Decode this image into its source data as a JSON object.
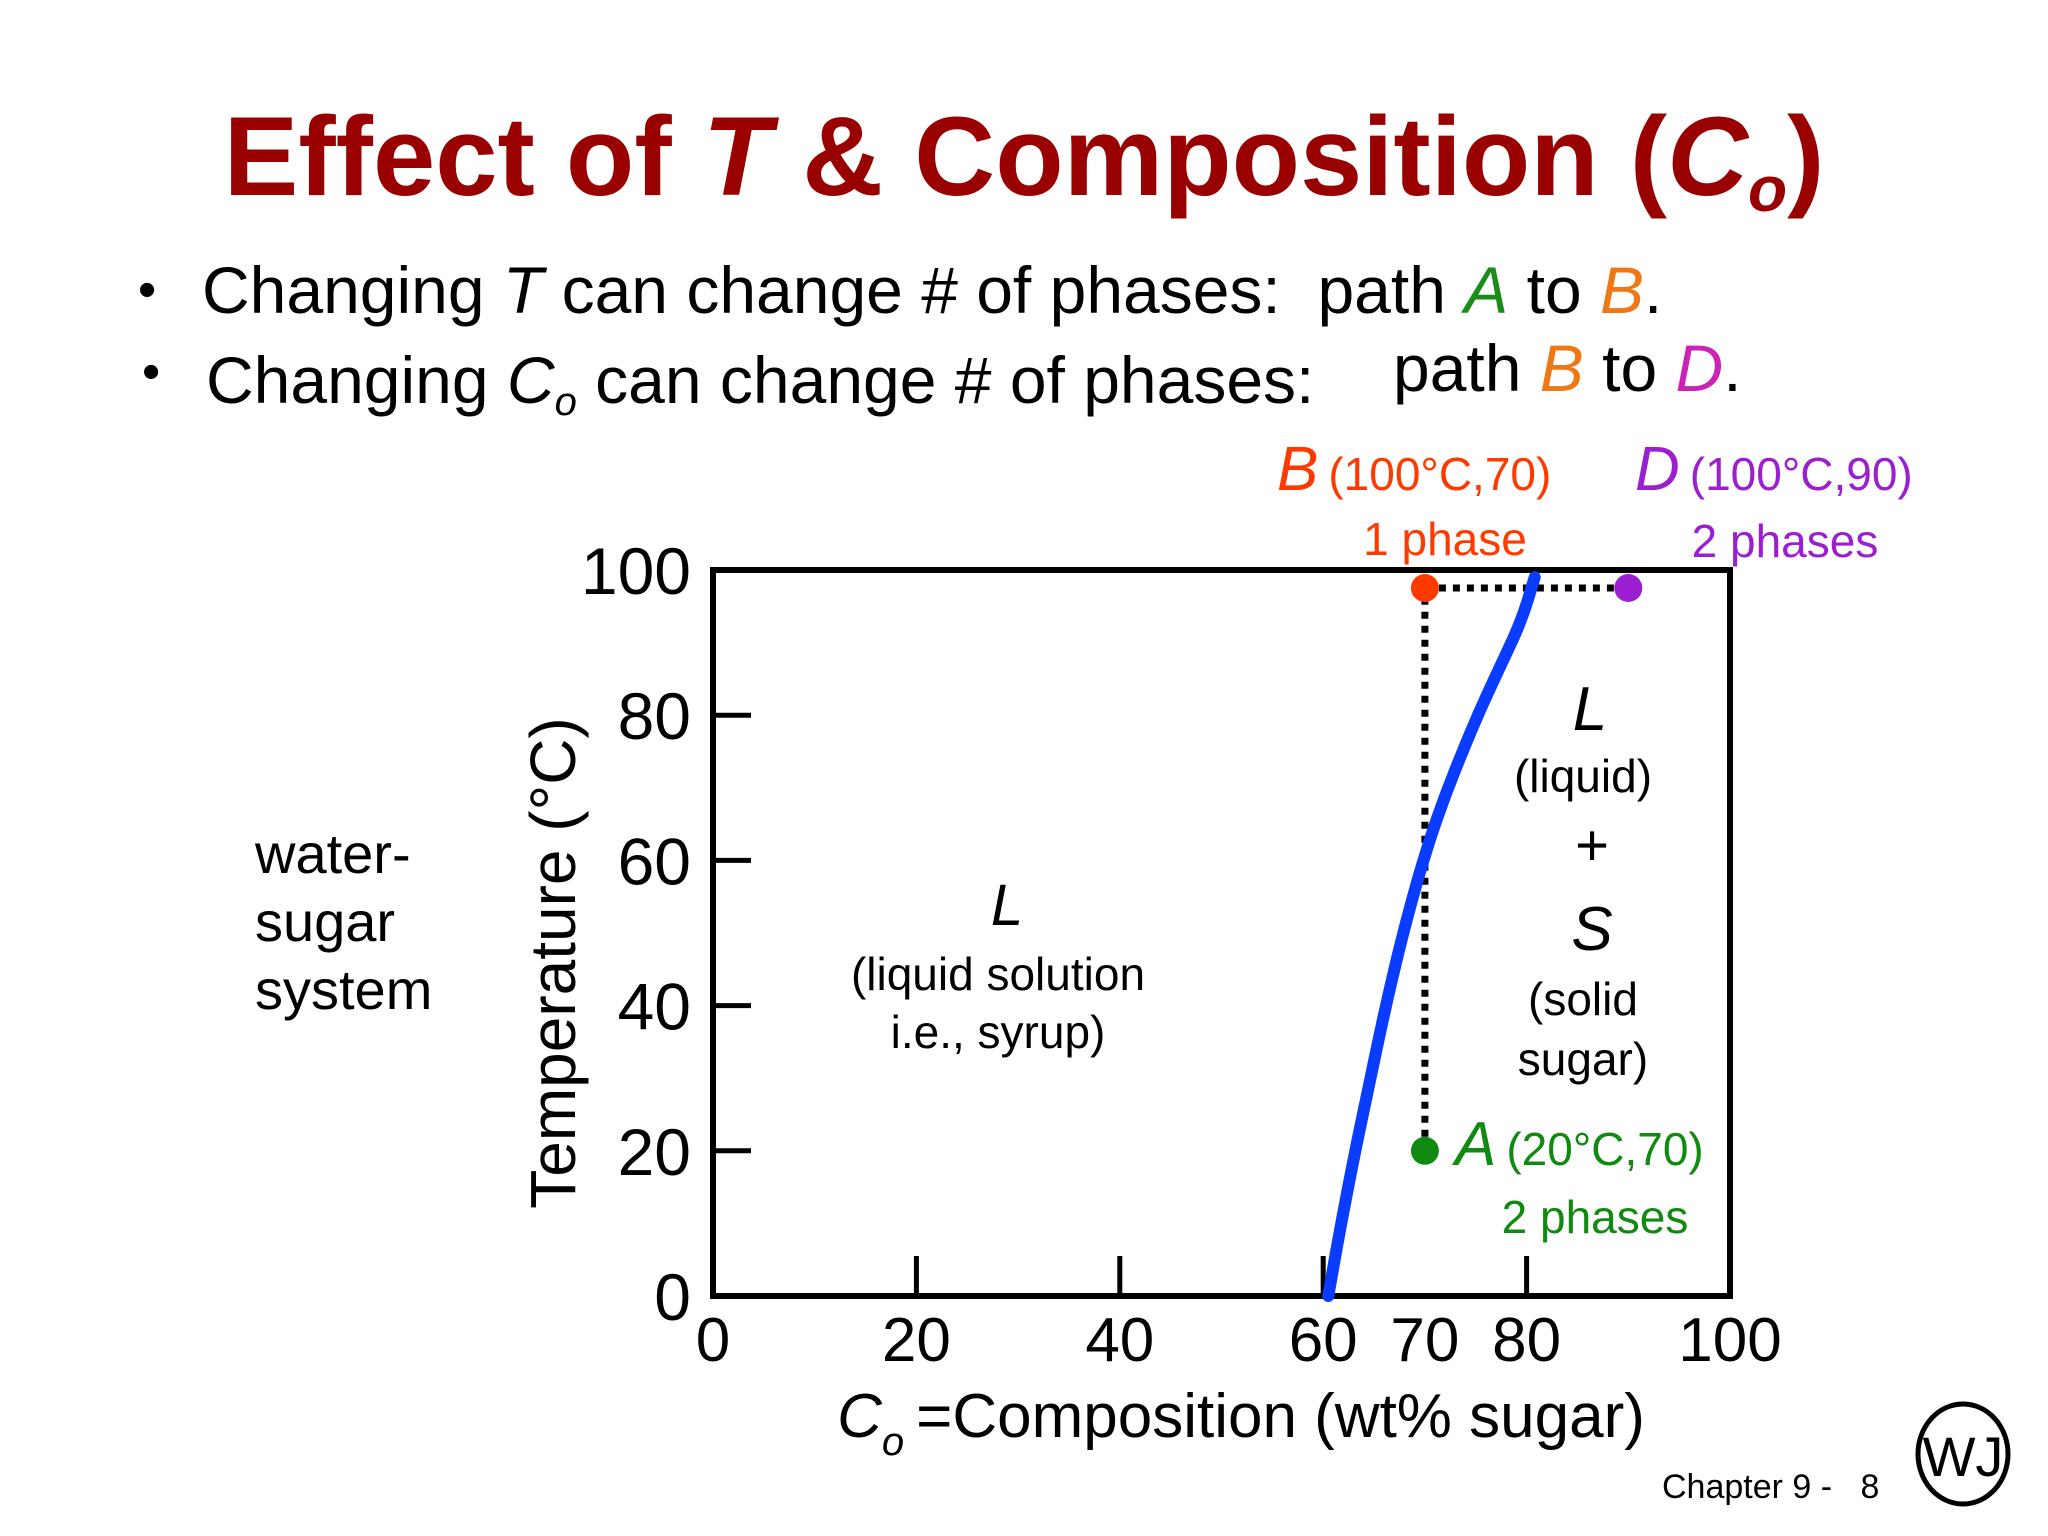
{
  "slide": {
    "title": {
      "prefix": "Effect of ",
      "t": "T",
      "mid": " & Composition (",
      "c": "C",
      "c_sub": "o",
      "suffix": ")"
    },
    "bullets": [
      {
        "before": "Changing ",
        "var": "T",
        "var_sub": "",
        "after": " can change # of phases:",
        "path_word": "path ",
        "from": "A",
        "to_word": " to ",
        "to": "B",
        "end": "."
      },
      {
        "before": "Changing ",
        "var": "C",
        "var_sub": "o",
        "after": " can change # of phases:",
        "path_word": "path ",
        "from": "B",
        "to_word": " to ",
        "to": "D",
        "end": "."
      }
    ],
    "system_label": [
      "water-",
      "sugar",
      "system"
    ],
    "footer": {
      "chapter": "Chapter 9 -",
      "page": "8",
      "logo_text": "WJ"
    }
  },
  "colors": {
    "title": "#990000",
    "path_a": "#1a8c1a",
    "path_b": "#f07814",
    "path_d": "#cc22b5",
    "point_b": "#ff3a00",
    "point_d": "#9b1fd0",
    "point_a": "#108a10",
    "solubility_curve": "#0a3cff"
  },
  "chart_data": {
    "type": "line",
    "xlabel": "=Composition (wt% sugar)",
    "xlabel_var": "C",
    "xlabel_sub": "o",
    "ylabel": "Temperature (°C)",
    "xlim": [
      0,
      100
    ],
    "ylim": [
      0,
      100
    ],
    "x_ticks": [
      0,
      20,
      40,
      60,
      70,
      80,
      100
    ],
    "y_ticks": [
      0,
      20,
      40,
      60,
      80,
      100
    ],
    "solubility_curve": {
      "x": [
        60.5,
        61.5,
        63,
        64.5,
        66,
        67.5,
        69,
        70.5,
        72,
        73.7,
        75.5,
        77.5,
        79.5,
        80.8
      ],
      "y": [
        0,
        8,
        19,
        29,
        39,
        48,
        56,
        63,
        69,
        75,
        81,
        87,
        93,
        99
      ]
    },
    "points": [
      {
        "label": "B",
        "coords": "(100°C,70)",
        "phases": "1 phase",
        "x": 70,
        "y": 100
      },
      {
        "label": "D",
        "coords": "(100°C,90)",
        "phases": "2 phases",
        "x": 90,
        "y": 100
      },
      {
        "label": "A",
        "coords": "(20°C,70)",
        "phases": "2 phases",
        "x": 70,
        "y": 20
      }
    ],
    "paths": [
      {
        "from": "A",
        "to": "B"
      },
      {
        "from": "B",
        "to": "D"
      }
    ],
    "regions": {
      "left": {
        "symbol": "L",
        "line1": "(liquid solution",
        "line2": "i.e., syrup)"
      },
      "right": {
        "symbol1": "L",
        "line1": "(liquid)",
        "plus": "+",
        "symbol2": "S",
        "line2": "(solid",
        "line3": "sugar)"
      }
    }
  }
}
